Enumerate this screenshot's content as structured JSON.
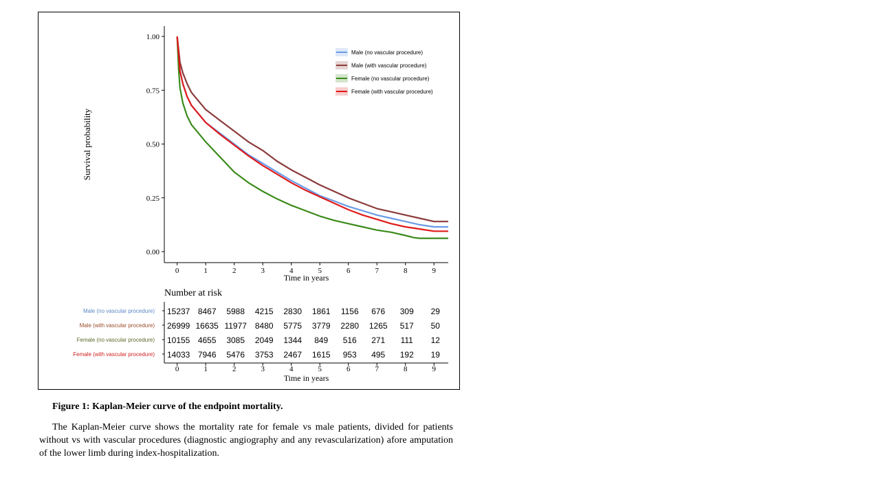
{
  "chart_data": {
    "type": "line",
    "xlabel": "Time in years",
    "ylabel": "Survival probability",
    "xlim": [
      -0.45,
      9.5
    ],
    "ylim": [
      0,
      1.0
    ],
    "x_ticks": [
      0,
      1,
      2,
      3,
      4,
      5,
      6,
      7,
      8,
      9
    ],
    "y_ticks": [
      "0.00",
      "0.25",
      "0.50",
      "0.75",
      "1.00"
    ],
    "grid": false,
    "legend_position": "top-right",
    "series": [
      {
        "name": "Male (no vascular procedure)",
        "color": "#6a9ae6",
        "x": [
          0,
          0.1,
          0.2,
          0.35,
          0.5,
          0.75,
          1,
          1.5,
          2,
          2.5,
          3,
          3.5,
          4,
          4.5,
          5,
          5.5,
          6,
          6.5,
          7,
          7.5,
          8,
          8.5,
          9,
          9.5
        ],
        "y": [
          1.0,
          0.84,
          0.78,
          0.72,
          0.68,
          0.64,
          0.6,
          0.55,
          0.5,
          0.45,
          0.41,
          0.37,
          0.33,
          0.295,
          0.26,
          0.235,
          0.21,
          0.19,
          0.17,
          0.155,
          0.14,
          0.125,
          0.115,
          0.115
        ]
      },
      {
        "name": "Male (with vascular procedure)",
        "color": "#8b3a3a",
        "x": [
          0,
          0.1,
          0.2,
          0.35,
          0.5,
          0.75,
          1,
          1.5,
          2,
          2.5,
          3,
          3.5,
          4,
          4.5,
          5,
          5.5,
          6,
          6.5,
          7,
          7.5,
          8,
          8.5,
          9,
          9.5
        ],
        "y": [
          1.0,
          0.88,
          0.83,
          0.78,
          0.74,
          0.7,
          0.66,
          0.61,
          0.56,
          0.51,
          0.47,
          0.42,
          0.38,
          0.345,
          0.31,
          0.28,
          0.25,
          0.225,
          0.2,
          0.185,
          0.17,
          0.155,
          0.14,
          0.14
        ]
      },
      {
        "name": "Female  (no vascular procedure)",
        "color": "#3a8a1a",
        "x": [
          0,
          0.05,
          0.1,
          0.2,
          0.35,
          0.5,
          0.75,
          1,
          1.5,
          2,
          2.5,
          3,
          3.5,
          4,
          4.5,
          5,
          5.5,
          6,
          6.5,
          7,
          7.5,
          8,
          8.3,
          8.5,
          9,
          9.5
        ],
        "y": [
          1.0,
          0.85,
          0.76,
          0.69,
          0.63,
          0.59,
          0.55,
          0.51,
          0.44,
          0.37,
          0.32,
          0.28,
          0.245,
          0.215,
          0.19,
          0.165,
          0.145,
          0.13,
          0.115,
          0.1,
          0.09,
          0.075,
          0.065,
          0.062,
          0.062,
          0.062
        ]
      },
      {
        "name": "Female  (with vascular procedure)",
        "color": "#e01a1a",
        "x": [
          0,
          0.1,
          0.2,
          0.35,
          0.5,
          0.75,
          1,
          1.5,
          2,
          2.5,
          3,
          3.5,
          4,
          4.5,
          5,
          5.5,
          6,
          6.5,
          7,
          7.5,
          8,
          8.5,
          9,
          9.5
        ],
        "y": [
          1.0,
          0.84,
          0.78,
          0.72,
          0.68,
          0.64,
          0.6,
          0.545,
          0.495,
          0.445,
          0.4,
          0.36,
          0.32,
          0.285,
          0.255,
          0.225,
          0.195,
          0.17,
          0.15,
          0.13,
          0.115,
          0.105,
          0.095,
          0.095
        ]
      }
    ],
    "risk_table": {
      "title": "Number at risk",
      "xlabel": "Time in years",
      "times": [
        0,
        1,
        2,
        3,
        4,
        5,
        6,
        7,
        8,
        9
      ],
      "rows": [
        {
          "label": "Male (no vascular procedure)",
          "color": "#5b87c5",
          "values": [
            "15237",
            "8467",
            "5988",
            "4215",
            "2830",
            "1861",
            "1156",
            "676",
            "309",
            "29"
          ]
        },
        {
          "label": "Male (with vascular procedure)",
          "color": "#9c4a2a",
          "values": [
            "26999",
            "16635",
            "11977",
            "8480",
            "5775",
            "3779",
            "2280",
            "1265",
            "517",
            "50"
          ]
        },
        {
          "label": "Female  (no vascular procedure)",
          "color": "#5a6a2a",
          "values": [
            "10155",
            "4655",
            "3085",
            "2049",
            "1344",
            "849",
            "516",
            "271",
            "111",
            "12"
          ]
        },
        {
          "label": "Female  (with vascular procedure)",
          "color": "#d02020",
          "values": [
            "14033",
            "7946",
            "5476",
            "3753",
            "2467",
            "1615",
            "953",
            "495",
            "192",
            "19"
          ]
        }
      ]
    }
  },
  "caption": {
    "title": "Figure 1: Kaplan-Meier curve of the endpoint  mortality.",
    "body": "The Kaplan-Meier curve shows the mortality rate for female vs male patients, divided for patients without vs with vascular procedures (diagnostic angiography and any revascularization) afore amputation of the lower limb during index-hospitalization."
  }
}
